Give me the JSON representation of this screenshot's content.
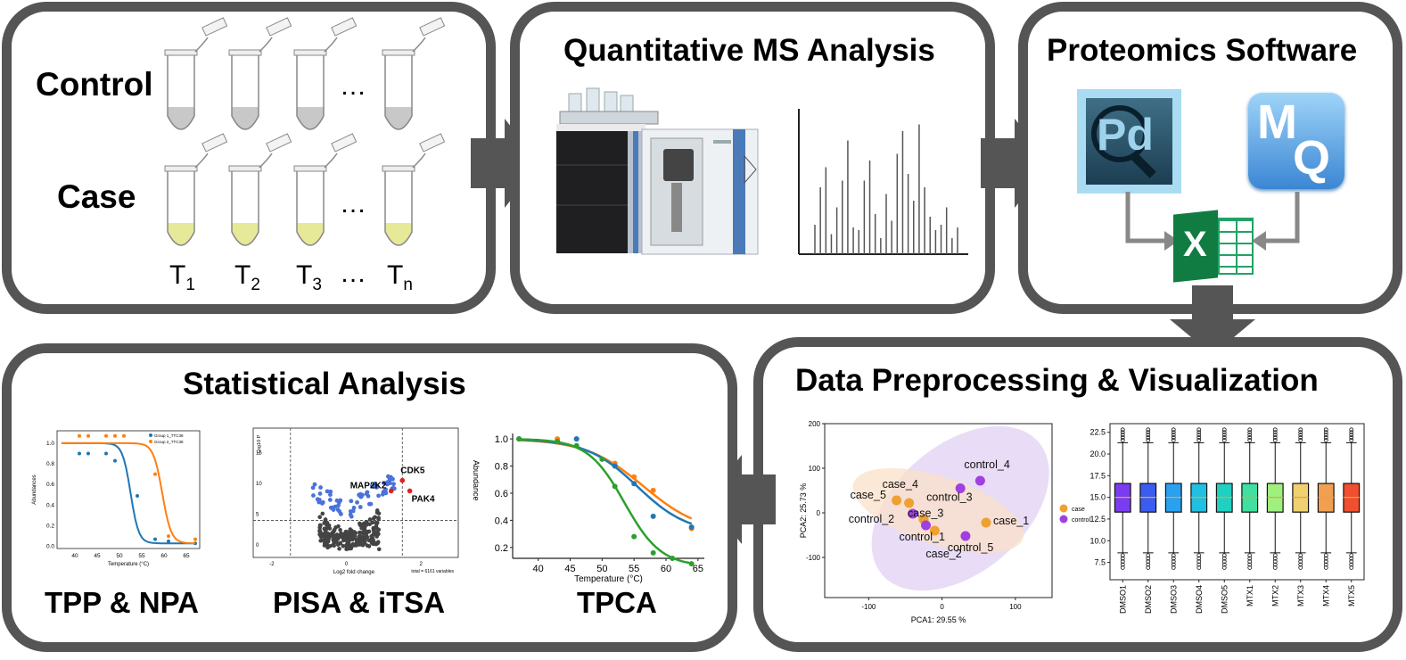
{
  "workflow": {
    "sample_prep": {
      "row_labels": [
        "Control",
        "Case"
      ],
      "ellipsis": "…",
      "temp_labels": [
        {
          "base": "T",
          "sub": "1"
        },
        {
          "base": "T",
          "sub": "2"
        },
        {
          "base": "T",
          "sub": "3"
        },
        {
          "base": "T",
          "sub": "n"
        }
      ]
    },
    "ms_analysis": {
      "title": "Quantitative MS Analysis"
    },
    "software": {
      "title": "Proteomics Software",
      "pd_logo": "Pd",
      "mq_logo_m": "M",
      "mq_logo_q": "Q",
      "excel_logo": "X"
    },
    "preprocessing": {
      "title": "Data Preprocessing & Visualization"
    },
    "statistics": {
      "title": "Statistical Analysis",
      "methods": [
        "TPP & NPA",
        "PISA & iTSA",
        "TPCA"
      ]
    }
  },
  "chart_data": [
    {
      "type": "scatter",
      "name": "PCA",
      "xlabel": "PCA1: 29.55 %",
      "ylabel": "PCA2: 25.73 %",
      "xticks": [
        -100,
        0,
        100
      ],
      "yticks": [
        -100,
        0,
        100,
        200
      ],
      "xlim": [
        -160,
        150
      ],
      "ylim": [
        -190,
        200
      ],
      "legend": [
        "case",
        "control"
      ],
      "colors": {
        "case": "#f0a030",
        "control": "#a040e0"
      },
      "points": [
        {
          "label": "case_1",
          "group": "case",
          "x": 60,
          "y": -22
        },
        {
          "label": "case_2",
          "group": "case",
          "x": -10,
          "y": -40
        },
        {
          "label": "case_3",
          "group": "case",
          "x": -25,
          "y": -15
        },
        {
          "label": "case_4",
          "group": "case",
          "x": -45,
          "y": 22
        },
        {
          "label": "case_5",
          "group": "case",
          "x": -62,
          "y": 28
        },
        {
          "label": "control_1",
          "group": "control",
          "x": -22,
          "y": -28
        },
        {
          "label": "control_2",
          "group": "control",
          "x": -40,
          "y": -2
        },
        {
          "label": "control_3",
          "group": "control",
          "x": 25,
          "y": 55
        },
        {
          "label": "control_4",
          "group": "control",
          "x": 52,
          "y": 72
        },
        {
          "label": "control_5",
          "group": "control",
          "x": 32,
          "y": -52
        }
      ]
    },
    {
      "type": "box",
      "name": "Intensity boxplot",
      "categories": [
        "DMSO1",
        "DMSO2",
        "DMSO3",
        "DMSO4",
        "DMSO5",
        "MTX1",
        "MTX2",
        "MTX3",
        "MTX4",
        "MTX5"
      ],
      "yticks": [
        7.5,
        10.0,
        12.5,
        15.0,
        17.5,
        20.0,
        22.5
      ],
      "ylim": [
        5.5,
        23.5
      ],
      "median": 15.0,
      "q1": 13.3,
      "q3": 16.6,
      "whisker_low": 8.6,
      "whisker_high": 21.3,
      "colors": [
        "#7a3cf0",
        "#3a5cf0",
        "#2aa0f0",
        "#20c0e0",
        "#20d0c0",
        "#40e0a0",
        "#a0f080",
        "#f0d070",
        "#f0a050",
        "#f05030"
      ]
    },
    {
      "type": "line",
      "name": "TPP melting curves",
      "xlabel": "Temperature (°C)",
      "ylabel": "Abundances",
      "xticks": [
        40,
        45,
        50,
        55,
        60,
        65
      ],
      "yticks": [
        0.0,
        0.2,
        0.4,
        0.6,
        0.8,
        1.0
      ],
      "xlim": [
        36,
        68
      ],
      "ylim": [
        -0.02,
        1.12
      ],
      "series": [
        {
          "name": "Group 1_TTC38",
          "color": "#1f77b4",
          "tm": 52.5,
          "slope": 1.1,
          "points": [
            [
              41,
              0.9
            ],
            [
              43,
              0.9
            ],
            [
              47,
              0.9
            ],
            [
              49,
              0.83
            ],
            [
              54,
              0.49
            ],
            [
              58,
              0.07
            ],
            [
              61,
              0.05
            ],
            [
              67,
              0.03
            ]
          ]
        },
        {
          "name": "Group 2_TTC38",
          "color": "#ff7f0e",
          "tm": 59.6,
          "slope": 1.0,
          "points": [
            [
              41,
              1.07
            ],
            [
              43,
              1.07
            ],
            [
              47,
              1.07
            ],
            [
              49,
              1.07
            ],
            [
              51,
              1.07
            ],
            [
              58,
              0.7
            ],
            [
              61,
              0.1
            ],
            [
              67,
              0.07
            ]
          ]
        }
      ]
    },
    {
      "type": "scatter",
      "name": "Volcano plot",
      "xlabel": "Log2 fold change",
      "ylabel": "-Log10 P",
      "footnote": "total = 6161 variables",
      "xticks": [
        -2,
        0,
        2
      ],
      "yticks": [
        0,
        5,
        10,
        15
      ],
      "xlim": [
        -2.5,
        3.0
      ],
      "ylim": [
        -2,
        19
      ],
      "thresholds": {
        "fc": [
          -1.5,
          1.5
        ],
        "p": 4.0
      },
      "highlighted": [
        {
          "label": "CDK5",
          "x": 1.5,
          "y": 10.5
        },
        {
          "label": "MAP2K2",
          "x": 1.2,
          "y": 8.8
        },
        {
          "label": "PAK4",
          "x": 1.7,
          "y": 8.8
        }
      ]
    },
    {
      "type": "line",
      "name": "TPCA curves",
      "xlabel": "Temperature (°C)",
      "ylabel": "Abundance",
      "xticks": [
        40,
        45,
        50,
        55,
        60,
        65
      ],
      "yticks": [
        0.2,
        0.4,
        0.6,
        0.8,
        1.0
      ],
      "xlim": [
        36,
        66
      ],
      "ylim": [
        0.12,
        1.04
      ],
      "series": [
        {
          "color": "#ff7f0e",
          "tm": 56.5,
          "slope": 0.22,
          "lo": 0.3,
          "points": [
            [
              37,
              1.0
            ],
            [
              43,
              1.0
            ],
            [
              46,
              1.0
            ],
            [
              52,
              0.82
            ],
            [
              55,
              0.72
            ],
            [
              58,
              0.62
            ],
            [
              64,
              0.34
            ]
          ]
        },
        {
          "color": "#1f77b4",
          "tm": 55.5,
          "slope": 0.25,
          "lo": 0.3,
          "points": [
            [
              37,
              1.0
            ],
            [
              43,
              0.98
            ],
            [
              46,
              1.0
            ],
            [
              52,
              0.8
            ],
            [
              55,
              0.67
            ],
            [
              58,
              0.43
            ],
            [
              64,
              0.35
            ]
          ]
        },
        {
          "color": "#2ca02c",
          "tm": 53.5,
          "slope": 0.35,
          "lo": 0.06,
          "points": [
            [
              37,
              1.0
            ],
            [
              43,
              0.98
            ],
            [
              46,
              0.95
            ],
            [
              50,
              0.85
            ],
            [
              52,
              0.65
            ],
            [
              55,
              0.28
            ],
            [
              58,
              0.16
            ],
            [
              61,
              0.12
            ],
            [
              64,
              0.08
            ]
          ]
        }
      ]
    },
    {
      "type": "bar",
      "name": "Mass spectrum",
      "values": [
        0.22,
        0.5,
        0.65,
        0.15,
        0.35,
        0.55,
        0.85,
        0.2,
        0.18,
        0.55,
        0.7,
        0.3,
        0.12,
        0.45,
        0.25,
        0.75,
        0.92,
        0.6,
        0.4,
        0.97,
        0.5,
        0.28,
        0.18,
        0.22,
        0.35,
        0.12,
        0.2
      ]
    }
  ]
}
